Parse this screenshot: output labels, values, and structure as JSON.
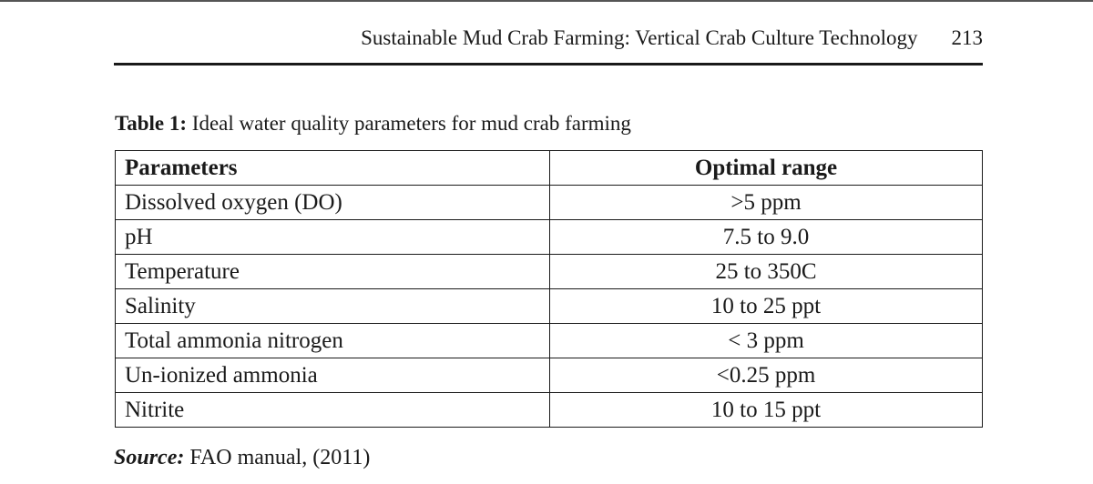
{
  "header": {
    "running_title": "Sustainable Mud Crab Farming: Vertical Crab Culture Technology",
    "page_number": "213"
  },
  "table": {
    "caption_label": "Table 1:",
    "caption_text": "Ideal water quality parameters for mud crab farming",
    "columns": [
      "Parameters",
      "Optimal range"
    ],
    "rows": [
      [
        "Dissolved oxygen (DO)",
        ">5 ppm"
      ],
      [
        "pH",
        "7.5 to 9.0"
      ],
      [
        "Temperature",
        "25 to 350C"
      ],
      [
        "Salinity",
        "10 to 25 ppt"
      ],
      [
        "Total ammonia nitrogen",
        "< 3 ppm"
      ],
      [
        "Un-ionized ammonia",
        "<0.25 ppm"
      ],
      [
        "Nitrite",
        "10 to 15 ppt"
      ]
    ]
  },
  "source": {
    "label": "Source:",
    "text": "FAO manual, (2011)"
  }
}
